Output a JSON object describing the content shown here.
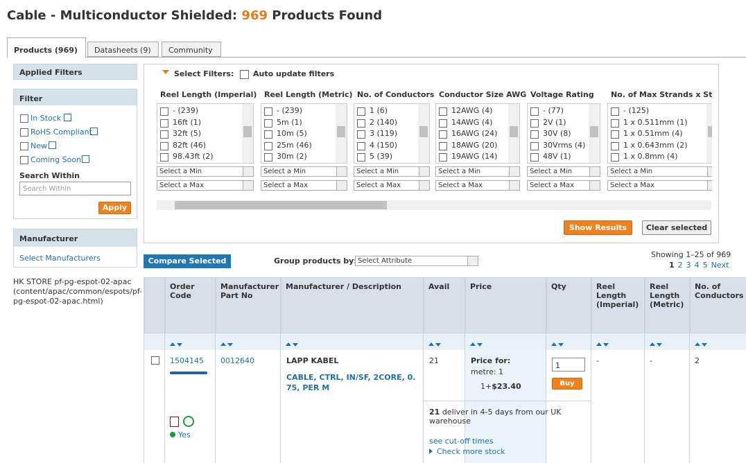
{
  "header": {
    "title": "Cable - Multiconductor Shielded:",
    "count": "969",
    "suffix": "Products Found"
  },
  "tabs": [
    "Products (969)",
    "Datasheets (9)",
    "Community"
  ],
  "sidebar": {
    "applied_filters": "Applied Filters",
    "filter_title": "Filter",
    "options": [
      "In Stock",
      "RoHS Compliant",
      "New",
      "Coming Soon"
    ],
    "search_label": "Search Within",
    "search_placeholder": "Search Within",
    "apply": "Apply",
    "manufacturer_title": "Manufacturer",
    "manufacturer_link": "Select Manufacturers",
    "store_note": "HK STORE pf-pg-espot-02-apac (content/apac/common/espots/pf-pg-espot-02-apac.html)"
  },
  "filters": {
    "label": "Select Filters:",
    "auto_update": "Auto update filters",
    "columns": [
      {
        "title": "Reel Length (Imperial)",
        "options": [
          "- (239)",
          "16ft (1)",
          "32ft (5)",
          "82ft (46)",
          "98.43ft (2)"
        ],
        "min": "Select a Min",
        "max": "Select a Max"
      },
      {
        "title": "Reel Length (Metric)",
        "options": [
          "- (239)",
          "5m (1)",
          "10m (5)",
          "25m (46)",
          "30m (2)"
        ],
        "min": "Select a Min",
        "max": "Select a Max"
      },
      {
        "title": "No. of Conductors",
        "options": [
          "1 (6)",
          "2 (140)",
          "3 (119)",
          "4 (150)",
          "5 (39)"
        ],
        "min": "Select a Min",
        "max": "Select a Max"
      },
      {
        "title": "Conductor Size AWG",
        "options": [
          "12AWG (4)",
          "14AWG (4)",
          "16AWG (24)",
          "18AWG (20)",
          "19AWG (14)"
        ],
        "min": "Select a Min",
        "max": "Select a Max"
      },
      {
        "title": "Voltage Rating",
        "options": [
          "- (77)",
          "2V (1)",
          "30V (8)",
          "30Vrms (4)",
          "48V (1)"
        ],
        "min": "Select a Min",
        "max": "Select a Max"
      },
      {
        "title": "No. of Max Strands x Stra",
        "options": [
          "- (125)",
          "1 x 0.511mm (1)",
          "1 x 0.51mm (4)",
          "1 x 0.643mm (2)",
          "1 x 0.8mm (4)"
        ],
        "min": "Select a Min",
        "max": "Select a Max"
      }
    ],
    "show_results": "Show Results",
    "clear_selected": "Clear selected"
  },
  "toolbar": {
    "compare": "Compare Selected",
    "group_label": "Group products by:",
    "group_select": "Select Attribute",
    "showing": "Showing 1–25 of 969",
    "pages": [
      "1",
      "2",
      "3",
      "4",
      "5",
      "Next"
    ]
  },
  "table": {
    "headers": [
      "Order Code",
      "Manufacturer Part No",
      "Manufacturer / Description",
      "Avail",
      "Price",
      "Qty",
      "Reel Length (Imperial)",
      "Reel Length (Metric)",
      "No. of Conductors"
    ],
    "row": {
      "order_code": "1504145",
      "mfr_part": "0012640",
      "manufacturer": "LAPP KABEL",
      "description": "CABLE, CTRL, IN/SF, 2CORE, 0.75, PER M",
      "avail": "21",
      "price_for": "Price for:",
      "unit": "metre: 1",
      "price_qty": "1+",
      "price": "$23.40",
      "qty": "1",
      "buy": "Buy",
      "reel_imperial": "-",
      "reel_metric": "-",
      "conductors": "2",
      "stock": "Yes",
      "delivery_count": "21",
      "delivery_text": "deliver in 4-5 days from our UK warehouse",
      "cutoff": "see cut-off times",
      "more_stock": "Check more stock"
    }
  }
}
